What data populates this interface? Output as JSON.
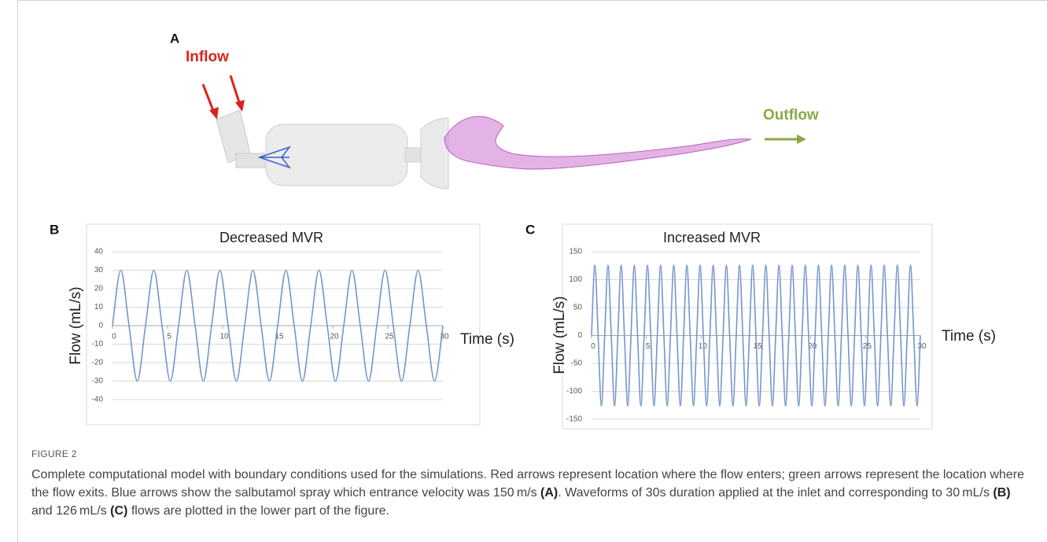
{
  "figure": {
    "panel_a": {
      "label": "A",
      "inflow": "Inflow",
      "outflow": "Outflow"
    },
    "label": "FIGURE 2",
    "caption": [
      "Complete computational model with boundary conditions used for the simulations. Red arrows represent location where the flow enters; green arrows represent the location where the flow exits. Blue arrows show the salbutamol spray which entrance velocity was 150 m/s ",
      "(A)",
      ". Waveforms of 30s duration applied at the inlet and corresponding to 30 mL/s ",
      "(B)",
      " and 126 mL/s ",
      "(C)",
      " flows are plotted in the lower part of the figure."
    ]
  },
  "chart_data": [
    {
      "type": "line",
      "panel": "B",
      "title": "Decreased MVR",
      "y_label": "Flow (mL/s)",
      "x_label": "Time (s)",
      "xlim": [
        0,
        30
      ],
      "xticks": [
        0,
        5,
        10,
        15,
        20,
        25,
        30
      ],
      "ylim": [
        -40,
        40
      ],
      "yticks": [
        -40,
        -30,
        -20,
        -10,
        0,
        10,
        20,
        30,
        40
      ],
      "grid": true,
      "series": [
        {
          "color": "#7396cc",
          "x": [
            0,
            0.75,
            1.5,
            2.25,
            3,
            3.75,
            4.5,
            5.25,
            6,
            6.75,
            7.5,
            8.25,
            9,
            9.75,
            10.5,
            11.25,
            12,
            12.75,
            13.5,
            14.25,
            15,
            15.75,
            16.5,
            17.25,
            18,
            18.75,
            19.5,
            20.25,
            21,
            21.75,
            22.5,
            23.25,
            24,
            24.75,
            25.5,
            26.25,
            27,
            27.75,
            28.5,
            29.25,
            30
          ],
          "values": [
            0,
            30,
            0,
            -30,
            0,
            30,
            0,
            -30,
            0,
            30,
            0,
            -30,
            0,
            30,
            0,
            -30,
            0,
            30,
            0,
            -30,
            0,
            30,
            0,
            -30,
            0,
            30,
            0,
            -30,
            0,
            30,
            0,
            -30,
            0,
            30,
            0,
            -30,
            0,
            30,
            0,
            -30,
            0
          ]
        }
      ]
    },
    {
      "type": "line",
      "panel": "C",
      "title": "Increased MVR",
      "y_label": "Flow (mL/s)",
      "x_label": "Time (s)",
      "xlim": [
        0,
        30
      ],
      "xticks": [
        0,
        5,
        10,
        15,
        20,
        25,
        30
      ],
      "ylim": [
        -150,
        150
      ],
      "yticks": [
        -150,
        -100,
        -50,
        0,
        50,
        100,
        150
      ],
      "grid": true,
      "series": [
        {
          "color": "#7396cc",
          "x": [
            0,
            0.3,
            0.6,
            0.9,
            1.2,
            1.5,
            1.8,
            2.1,
            2.4,
            2.7,
            3,
            3.3,
            3.6,
            3.9,
            4.2,
            4.5,
            4.8,
            5.1,
            5.4,
            5.7,
            6,
            6.3,
            6.6,
            6.9,
            7.2,
            7.5,
            7.8,
            8.1,
            8.4,
            8.7,
            9,
            9.3,
            9.6,
            9.9,
            10.2,
            10.5,
            10.8,
            11.1,
            11.4,
            11.7,
            12,
            12.3,
            12.6,
            12.9,
            13.2,
            13.5,
            13.8,
            14.1,
            14.4,
            14.7,
            15,
            15.3,
            15.6,
            15.9,
            16.2,
            16.5,
            16.8,
            17.1,
            17.4,
            17.7,
            18,
            18.3,
            18.6,
            18.9,
            19.2,
            19.5,
            19.8,
            20.1,
            20.4,
            20.7,
            21,
            21.3,
            21.6,
            21.9,
            22.2,
            22.5,
            22.8,
            23.1,
            23.4,
            23.7,
            24,
            24.3,
            24.6,
            24.9,
            25.2,
            25.5,
            25.8,
            26.1,
            26.4,
            26.7,
            27,
            27.3,
            27.6,
            27.9,
            28.2,
            28.5,
            28.8,
            29.1,
            29.4,
            29.7,
            30
          ],
          "values": [
            0,
            126,
            0,
            -126,
            0,
            126,
            0,
            -126,
            0,
            126,
            0,
            -126,
            0,
            126,
            0,
            -126,
            0,
            126,
            0,
            -126,
            0,
            126,
            0,
            -126,
            0,
            126,
            0,
            -126,
            0,
            126,
            0,
            -126,
            0,
            126,
            0,
            -126,
            0,
            126,
            0,
            -126,
            0,
            126,
            0,
            -126,
            0,
            126,
            0,
            -126,
            0,
            126,
            0,
            -126,
            0,
            126,
            0,
            -126,
            0,
            126,
            0,
            -126,
            0,
            126,
            0,
            -126,
            0,
            126,
            0,
            -126,
            0,
            126,
            0,
            -126,
            0,
            126,
            0,
            -126,
            0,
            126,
            0,
            -126,
            0,
            126,
            0,
            -126,
            0,
            126,
            0,
            -126,
            0,
            126,
            0,
            -126,
            0,
            126,
            0,
            -126,
            0,
            126,
            0,
            -126,
            0
          ]
        }
      ]
    }
  ]
}
